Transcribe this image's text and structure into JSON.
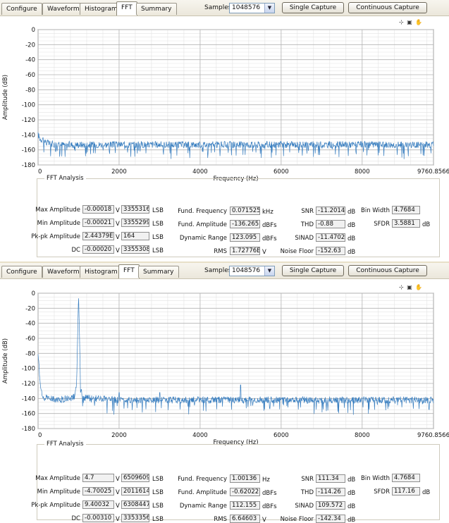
{
  "tabs": [
    "Configure",
    "Waveform",
    "Histogram",
    "FFT",
    "Summary"
  ],
  "active_tab": "FFT",
  "controls": {
    "samples_label": "Samples",
    "samples_value": "1048576",
    "single_capture": "Single Capture",
    "continuous_capture": "Continuous Capture",
    "graph_tools": "⊹ ▣ ✋"
  },
  "group_title": "FFT Analysis",
  "labels": {
    "max_amplitude": "Max Amplitude",
    "min_amplitude": "Min Amplitude",
    "pkpk_amplitude": "Pk-pk Amplitude",
    "dc": "DC",
    "fund_frequency": "Fund. Frequency",
    "fund_amplitude": "Fund. Amplitude",
    "dynamic_range": "Dynamic Range",
    "rms": "RMS",
    "snr": "SNR",
    "thd": "THD",
    "sinad": "SINAD",
    "noise_floor": "Noise Floor",
    "bin_width": "Bin Width",
    "sfdr": "SFDR"
  },
  "units": {
    "v": "V",
    "lsb": "LSB",
    "khz": "kHz",
    "dbfs": "dBFs",
    "db": "dB"
  },
  "panels": [
    {
      "fft": {
        "max_amplitude_v": "-0.00018",
        "max_amplitude_lsb": "3355316",
        "min_amplitude_v": "-0.00021",
        "min_amplitude_lsb": "3355299",
        "pkpk_v": "2.44379E",
        "pkpk_lsb": "164",
        "dc_v": "-0.00020",
        "dc_lsb": "3355308",
        "fund_frequency": "0.071525",
        "fund_frequency_unit": "kHz",
        "fund_amplitude": "-136.265",
        "dynamic_range": "123.095",
        "rms": "1.72776E",
        "snr": "-11.2014",
        "thd": "-0.88",
        "sinad": "-11.4702",
        "noise_floor": "-152.63",
        "bin_width": "4.7684",
        "sfdr": "3.5881"
      }
    },
    {
      "fft": {
        "max_amplitude_v": "4.7",
        "max_amplitude_lsb": "6509609",
        "min_amplitude_v": "-4.70025",
        "min_amplitude_lsb": "2011614",
        "pkpk_v": "9.40032",
        "pkpk_lsb": "6308447",
        "dc_v": "-0.00310",
        "dc_lsb": "3353356",
        "fund_frequency": "1.00136",
        "fund_frequency_unit": "Hz",
        "fund_amplitude": "-0.62022",
        "dynamic_range": "112.155",
        "rms": "6.64603",
        "snr": "111.34",
        "thd": "-114.26",
        "sinad": "109.572",
        "noise_floor": "-142.34",
        "bin_width": "4.7684",
        "sfdr": "117.16"
      }
    }
  ],
  "chart_data": [
    {
      "type": "line",
      "xlabel": "Frequency (Hz)",
      "ylabel": "Amplitude (dB)",
      "xlim": [
        0,
        9760.8566
      ],
      "ylim": [
        -180,
        0
      ],
      "xticks": [
        0,
        2000,
        4000,
        6000,
        8000,
        9760.8566
      ],
      "xtick_labels": [
        "0",
        "2000",
        "4000",
        "6000",
        "8000",
        "9760.8566"
      ],
      "yticks": [
        0,
        -20,
        -40,
        -60,
        -80,
        -100,
        -120,
        -140,
        -160,
        -180
      ],
      "grid": true,
      "series": [
        {
          "x": [
            0,
            60,
            120,
            200,
            300,
            500,
            1000,
            2000,
            3000,
            4000,
            5000,
            6000,
            7000,
            8000,
            9000,
            9760.8566
          ],
          "values": [
            -140,
            -146,
            -145,
            -150,
            -152,
            -153,
            -153,
            -153,
            -153,
            -153,
            -153,
            -153,
            -153,
            -153,
            -153,
            -153
          ]
        }
      ]
    },
    {
      "type": "line",
      "xlabel": "Frequency (Hz)",
      "ylabel": "Amplitude (dB)",
      "xlim": [
        0,
        9760.8566
      ],
      "ylim": [
        -180,
        0
      ],
      "xticks": [
        0,
        2000,
        4000,
        6000,
        8000,
        9760.8566
      ],
      "xtick_labels": [
        "0",
        "2000",
        "4000",
        "6000",
        "8000",
        "9760.8566"
      ],
      "yticks": [
        0,
        -20,
        -40,
        -60,
        -80,
        -100,
        -120,
        -140,
        -160,
        -180
      ],
      "grid": true,
      "series": [
        {
          "x": [
            0,
            50,
            100,
            500,
            900,
            950,
            1000,
            1050,
            1100,
            2000,
            3000,
            4000,
            5000,
            6000,
            7000,
            8000,
            9000,
            9760.8566
          ],
          "values": [
            -80,
            -120,
            -138,
            -142,
            -138,
            -122,
            0,
            -125,
            -139,
            -142,
            -142,
            -142,
            -142,
            -142,
            -142,
            -142,
            -142,
            -142
          ]
        }
      ],
      "spurs": {
        "x": [
          2000,
          3000,
          5000
        ],
        "values": [
          -132,
          -132,
          -122
        ]
      }
    }
  ]
}
